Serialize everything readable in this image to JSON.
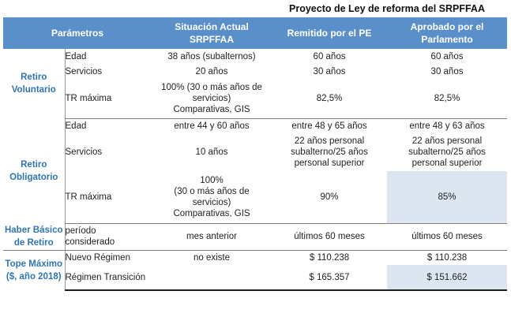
{
  "super_header": "Proyecto de Ley de reforma del SRPFFAA",
  "columns": {
    "parametros": "Parámetros",
    "actual_l1": "Situación Actual",
    "actual_l2": "SRPFFAA",
    "pe": "Remitido por el PE",
    "parl_l1": "Aprobado por el",
    "parl_l2": "Parlamento"
  },
  "retiro_voluntario": {
    "group_l1": "Retiro",
    "group_l2": "Voluntario",
    "edad": {
      "param": "Edad",
      "actual": "38 años (subalternos)",
      "pe": "60 años",
      "parl": "60 años"
    },
    "servicios": {
      "param": "Servicios",
      "actual": "20 años",
      "pe": "30 años",
      "parl": "30 años"
    },
    "tr": {
      "param": "TR máxima",
      "actual_l1": "100% (30 o más años de",
      "actual_l2": "servicios)",
      "actual_l3": "Comparativas, GIS",
      "pe": "82,5%",
      "parl": "82,5%"
    }
  },
  "retiro_obligatorio": {
    "group_l1": "Retiro",
    "group_l2": "Obligatorio",
    "edad": {
      "param": "Edad",
      "actual": "entre 44 y 60 años",
      "pe": "entre 48 y 65 años",
      "parl": "entre 48 y 63 años"
    },
    "servicios": {
      "param": "Servicios",
      "actual": "10 años",
      "pe_l1": "22 años personal",
      "pe_l2": "subalterno/25 años",
      "pe_l3": "personal superior",
      "parl_l1": "22 años personal",
      "parl_l2": "subalterno/25 años",
      "parl_l3": "personal superior"
    },
    "tr": {
      "param": "TR máxima",
      "actual_l1": "100%",
      "actual_l2": "(30 o más años de",
      "actual_l3": "servicios)",
      "actual_l4": "Comparativas, GIS",
      "pe": "90%",
      "parl": "85%"
    }
  },
  "haber_basico": {
    "group_l1": "Haber Básico",
    "group_l2": "de Retiro",
    "param_l1": "período",
    "param_l2": "considerado",
    "actual": "mes anterior",
    "pe": "últimos 60 meses",
    "parl": "últimos 60 meses"
  },
  "tope_maximo": {
    "group_l1": "Tope Máximo",
    "group_l2": "($, año 2018)",
    "nuevo": {
      "param": "Nuevo Régimen",
      "actual": "no existe",
      "pe": "$ 110.238",
      "parl": "$ 110.238"
    },
    "transicion": {
      "param": "Régimen Transición",
      "actual": "",
      "pe": "$ 165.357",
      "parl": "$ 151.662"
    }
  },
  "colors": {
    "header_bg": "#5b8fc9",
    "group_text": "#2f75b5",
    "highlight": "#dce6f1"
  }
}
